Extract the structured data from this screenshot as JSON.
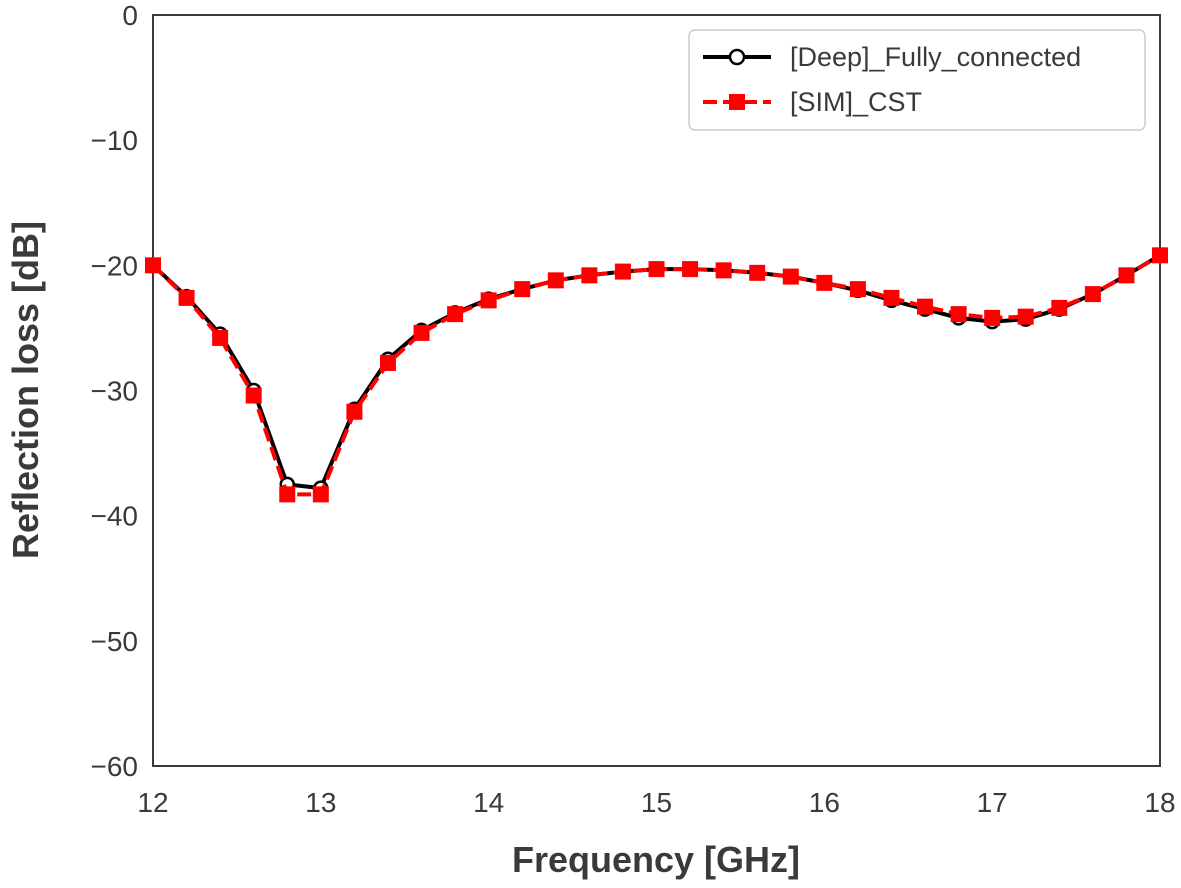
{
  "chart_data": {
    "type": "line",
    "title": "",
    "xlabel": "Frequency [GHz]",
    "ylabel": "Reflection loss [dB]",
    "xlim": [
      12,
      18
    ],
    "ylim": [
      -60,
      0
    ],
    "xticks": [
      12,
      13,
      14,
      15,
      16,
      17,
      18
    ],
    "yticks": [
      0,
      -10,
      -20,
      -30,
      -40,
      -50,
      -60
    ],
    "xtick_labels": [
      "12",
      "13",
      "14",
      "15",
      "16",
      "17",
      "18"
    ],
    "ytick_labels": [
      "0",
      "−10",
      "−20",
      "−30",
      "−40",
      "−50",
      "−60"
    ],
    "grid": false,
    "legend_position": "top-right",
    "x": [
      12.0,
      12.2,
      12.4,
      12.6,
      12.8,
      13.0,
      13.2,
      13.4,
      13.6,
      13.8,
      14.0,
      14.2,
      14.4,
      14.6,
      14.8,
      15.0,
      15.2,
      15.4,
      15.6,
      15.8,
      16.0,
      16.2,
      16.4,
      16.6,
      16.8,
      17.0,
      17.2,
      17.4,
      17.6,
      17.8,
      18.0
    ],
    "series": [
      {
        "name": "[Deep]_Fully_connected",
        "color": "#000000",
        "marker": "open-circle",
        "values": [
          -20.0,
          -22.5,
          -25.5,
          -30.0,
          -37.5,
          -37.8,
          -31.5,
          -27.5,
          -25.2,
          -23.8,
          -22.7,
          -21.9,
          -21.2,
          -20.8,
          -20.5,
          -20.3,
          -20.3,
          -20.4,
          -20.6,
          -20.9,
          -21.4,
          -22.0,
          -22.8,
          -23.5,
          -24.2,
          -24.5,
          -24.3,
          -23.5,
          -22.3,
          -20.8,
          -19.2
        ]
      },
      {
        "name": "[SIM]_CST",
        "color": "#ff0000",
        "marker": "square",
        "values": [
          -20.0,
          -22.6,
          -25.8,
          -30.4,
          -38.3,
          -38.3,
          -31.7,
          -27.8,
          -25.4,
          -23.9,
          -22.8,
          -21.9,
          -21.2,
          -20.8,
          -20.5,
          -20.3,
          -20.3,
          -20.4,
          -20.6,
          -20.9,
          -21.4,
          -21.9,
          -22.6,
          -23.3,
          -23.9,
          -24.2,
          -24.1,
          -23.4,
          -22.3,
          -20.8,
          -19.2
        ]
      }
    ]
  }
}
